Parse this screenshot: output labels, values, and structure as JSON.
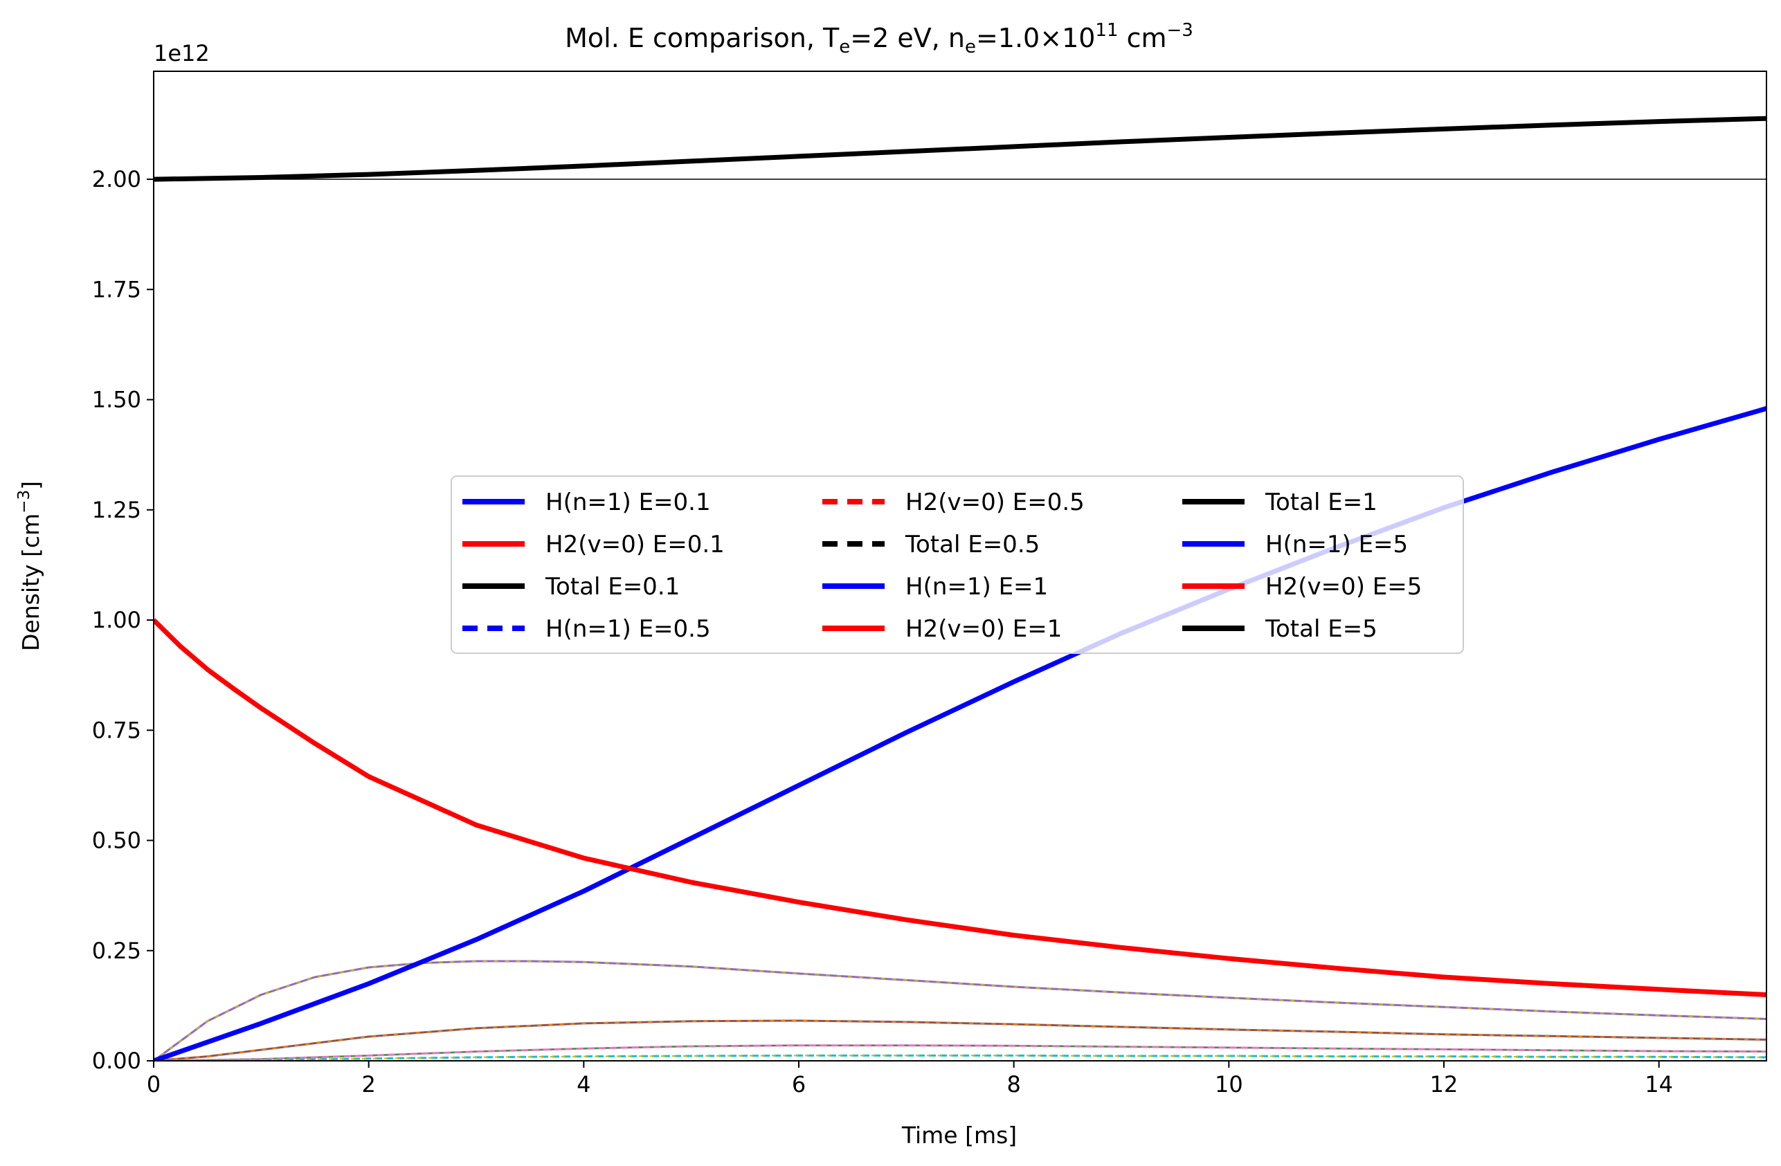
{
  "chart_data": {
    "type": "line",
    "title": "Mol. E comparison,  T",
    "title_parts": {
      "t_label": "T",
      "t_sub": "e",
      "t_value": "=2 eV, n",
      "n_sub": "e",
      "n_value": "=1.0×10",
      "n_exp": "11",
      "n_unit": " cm",
      "n_unit_exp": "−3"
    },
    "xlabel": "Time [ms]",
    "ylabel": "Density [cm",
    "ylabel_exp": "−3",
    "ylabel_close": "]",
    "offset_text": "1e12",
    "xlim": [
      0,
      15
    ],
    "ylim": [
      0,
      2.245
    ],
    "xticks": [
      0,
      2,
      4,
      6,
      8,
      10,
      12,
      14
    ],
    "xtick_labels": [
      "0",
      "2",
      "4",
      "6",
      "8",
      "10",
      "12",
      "14"
    ],
    "yticks": [
      0,
      0.25,
      0.5,
      0.75,
      1.0,
      1.25,
      1.5,
      1.75,
      2.0
    ],
    "ytick_labels": [
      "0.00",
      "0.25",
      "0.50",
      "0.75",
      "1.00",
      "1.25",
      "1.50",
      "1.75",
      "2.00"
    ],
    "hline": {
      "y": 2.0,
      "color": "#000000"
    },
    "colors": {
      "blue": "#0000ff",
      "red": "#ff0000",
      "black": "#000000",
      "purple": "#9467bd",
      "brown": "#8c564b",
      "pink": "#e377c2",
      "olive": "#bcbd22",
      "orange": "#ff7f0e",
      "green": "#2ca02c",
      "cyan": "#17becf"
    },
    "series": [
      {
        "name": "Total E=0.1",
        "color": "#000000",
        "style": "solid",
        "width": 7,
        "x": [
          0,
          1,
          2,
          3,
          4,
          5,
          6,
          7,
          8,
          9,
          10,
          11,
          12,
          13,
          14,
          15
        ],
        "values": [
          2.0,
          2.004,
          2.011,
          2.02,
          2.03,
          2.041,
          2.052,
          2.063,
          2.074,
          2.085,
          2.095,
          2.105,
          2.114,
          2.123,
          2.131,
          2.138
        ]
      },
      {
        "name": "H(n=1) E=0.1",
        "color": "#0000ff",
        "style": "solid",
        "width": 7,
        "x": [
          0,
          1,
          2,
          3,
          4,
          5,
          6,
          7,
          8,
          9,
          10,
          11,
          12,
          13,
          14,
          15
        ],
        "values": [
          0.0,
          0.085,
          0.175,
          0.275,
          0.385,
          0.505,
          0.625,
          0.745,
          0.86,
          0.97,
          1.07,
          1.165,
          1.255,
          1.335,
          1.41,
          1.48
        ]
      },
      {
        "name": "H2(v=0) E=0.1",
        "color": "#ff0000",
        "style": "solid",
        "width": 7,
        "x": [
          0,
          0.25,
          0.5,
          0.75,
          1,
          1.5,
          2,
          3,
          4,
          5,
          6,
          7,
          8,
          9,
          10,
          11,
          12,
          13,
          14,
          15
        ],
        "values": [
          1.0,
          0.94,
          0.888,
          0.843,
          0.8,
          0.72,
          0.645,
          0.535,
          0.46,
          0.405,
          0.36,
          0.32,
          0.285,
          0.257,
          0.232,
          0.21,
          0.19,
          0.175,
          0.162,
          0.15
        ]
      },
      {
        "name": "",
        "color": "#9467bd",
        "style": "solid",
        "width": 3,
        "dash_color": "#bcbd22",
        "x": [
          0,
          0.5,
          1,
          1.5,
          2,
          2.5,
          3,
          3.5,
          4,
          5,
          6,
          7,
          8,
          9,
          10,
          11,
          12,
          13,
          14,
          15
        ],
        "values": [
          0.0,
          0.09,
          0.15,
          0.19,
          0.212,
          0.222,
          0.226,
          0.226,
          0.224,
          0.214,
          0.198,
          0.183,
          0.168,
          0.155,
          0.143,
          0.132,
          0.122,
          0.112,
          0.103,
          0.095
        ]
      },
      {
        "name": "",
        "color": "#8c564b",
        "style": "solid",
        "width": 3,
        "dash_color": "#ff7f0e",
        "x": [
          0,
          0.5,
          1,
          2,
          3,
          4,
          5,
          6,
          7,
          8,
          9,
          10,
          11,
          12,
          13,
          14,
          15
        ],
        "values": [
          0.0,
          0.01,
          0.025,
          0.055,
          0.074,
          0.085,
          0.09,
          0.091,
          0.088,
          0.083,
          0.077,
          0.071,
          0.066,
          0.06,
          0.056,
          0.052,
          0.048
        ]
      },
      {
        "name": "",
        "color": "#e377c2",
        "style": "solid",
        "width": 3,
        "dash_color": "#2ca02c",
        "x": [
          0,
          1,
          2,
          3,
          4,
          5,
          6,
          7,
          8,
          9,
          10,
          11,
          12,
          13,
          14,
          15
        ],
        "values": [
          0.0,
          0.004,
          0.012,
          0.021,
          0.028,
          0.033,
          0.035,
          0.035,
          0.034,
          0.032,
          0.03,
          0.028,
          0.026,
          0.024,
          0.022,
          0.021
        ]
      },
      {
        "name": "",
        "color": "#17becf",
        "style": "dashed",
        "width": 3,
        "dash_color": "#bcbd22",
        "x": [
          0,
          1,
          2,
          3,
          4,
          5,
          6,
          7,
          8,
          9,
          10,
          11,
          12,
          13,
          14,
          15
        ],
        "values": [
          0.0,
          0.002,
          0.005,
          0.008,
          0.01,
          0.011,
          0.012,
          0.012,
          0.012,
          0.011,
          0.011,
          0.01,
          0.01,
          0.009,
          0.009,
          0.008
        ]
      }
    ],
    "legend": {
      "placement": "center",
      "columns": 3,
      "entries": [
        {
          "label": "H(n=1) E=0.1",
          "color": "#0000ff",
          "style": "solid"
        },
        {
          "label": "H2(v=0) E=0.1",
          "color": "#ff0000",
          "style": "solid"
        },
        {
          "label": "Total E=0.1",
          "color": "#000000",
          "style": "solid"
        },
        {
          "label": "H(n=1) E=0.5",
          "color": "#0000ff",
          "style": "dashed"
        },
        {
          "label": "H2(v=0) E=0.5",
          "color": "#ff0000",
          "style": "dashed"
        },
        {
          "label": "Total E=0.5",
          "color": "#000000",
          "style": "dashed"
        },
        {
          "label": "H(n=1) E=1",
          "color": "#0000ff",
          "style": "solid"
        },
        {
          "label": "H2(v=0) E=1",
          "color": "#ff0000",
          "style": "solid"
        },
        {
          "label": "Total E=1",
          "color": "#000000",
          "style": "solid"
        },
        {
          "label": "H(n=1) E=5",
          "color": "#0000ff",
          "style": "solid"
        },
        {
          "label": "H2(v=0) E=5",
          "color": "#ff0000",
          "style": "solid"
        },
        {
          "label": "Total E=5",
          "color": "#000000",
          "style": "solid"
        }
      ]
    }
  }
}
